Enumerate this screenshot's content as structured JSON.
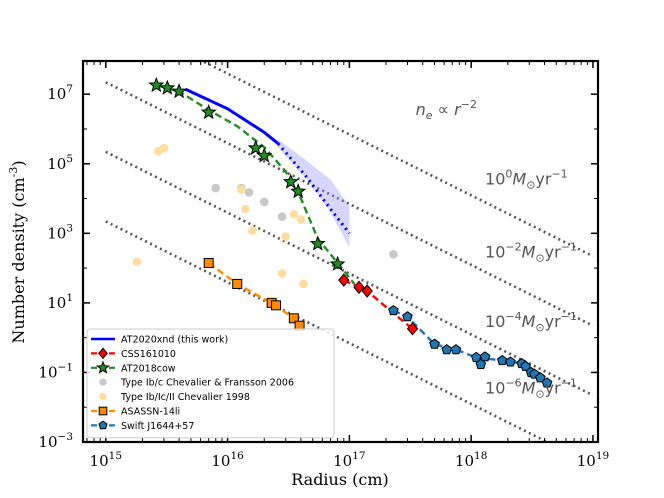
{
  "chart_data": {
    "type": "scatter",
    "title": "",
    "xlabel": "Radius (cm)",
    "ylabel": "Number density (cm",
    "ylabel_sup": "-3",
    "ylabel_tail": ")",
    "xscale": "log",
    "yscale": "log",
    "xlim": [
      650000000000000.0,
      1.1e+19
    ],
    "ylim": [
      0.001,
      90000000.0
    ],
    "x_major_ticks": [
      1000000000000000.0,
      1e+16,
      1e+17,
      1e+18,
      1e+19
    ],
    "y_major_ticks": [
      0.001,
      0.1,
      10,
      1000,
      100000,
      10000000
    ],
    "x_tick_labels": [
      {
        "base": "10",
        "exp": "15"
      },
      {
        "base": "10",
        "exp": "16"
      },
      {
        "base": "10",
        "exp": "17"
      },
      {
        "base": "10",
        "exp": "18"
      },
      {
        "base": "10",
        "exp": "19"
      }
    ],
    "y_tick_labels": [
      {
        "base": "10",
        "exp": "−3"
      },
      {
        "base": "10",
        "exp": "−1"
      },
      {
        "base": "10",
        "exp": "1"
      },
      {
        "base": "10",
        "exp": "3"
      },
      {
        "base": "10",
        "exp": "5"
      },
      {
        "base": "10",
        "exp": "7"
      }
    ],
    "reference_lines": [
      {
        "name": "1e-6 Msun/yr",
        "x": [
          1000000000000000.0,
          1e+19
        ],
        "y": [
          2200,
          0.00022
        ]
      },
      {
        "name": "1e-4 Msun/yr",
        "x": [
          1000000000000000.0,
          1e+19
        ],
        "y": [
          220000,
          0.022
        ]
      },
      {
        "name": "1e-2 Msun/yr",
        "x": [
          1000000000000000.0,
          1e+19
        ],
        "y": [
          22000000,
          2.2
        ]
      },
      {
        "name": "1e0 Msun/yr",
        "x": [
          1000000000000000.0,
          1e+19
        ],
        "y": [
          2200000000,
          220
        ]
      }
    ],
    "annotations": [
      {
        "text": "n",
        "sub": "e",
        "rest": " ∝ r",
        "sup": "−2",
        "x": 3.5e+17,
        "y": 2500000.0
      },
      {
        "text": "10",
        "sup": "0",
        "rest": "M",
        "sub": "⊙",
        "tail": "yr",
        "sup2": "−1",
        "x": 1.3e+18,
        "y": 25000.0
      },
      {
        "text": "10",
        "sup": "−2",
        "rest": "M",
        "sub": "⊙",
        "tail": "yr",
        "sup2": "−1",
        "x": 1.3e+18,
        "y": 200
      },
      {
        "text": "10",
        "sup": "−4",
        "rest": "M",
        "sub": "⊙",
        "tail": "yr",
        "sup2": "−1",
        "x": 1.3e+18,
        "y": 2.0
      },
      {
        "text": "10",
        "sup": "−6",
        "rest": "M",
        "sub": "⊙",
        "tail": "yr",
        "sup2": "−1",
        "x": 1.3e+18,
        "y": 0.025
      }
    ],
    "series": [
      {
        "name": "Type Ib/c Chevalier & Fransson 2006",
        "color": "#c8c8c8",
        "marker": "circle",
        "x": [
          8000000000000000.0,
          1.3e+16,
          2e+16,
          1.5e+16,
          2.8e+16,
          2.3e+17
        ],
        "y": [
          20000.0,
          20000.0,
          8000,
          15000.0,
          3000,
          250
        ]
      },
      {
        "name": "Type Ib/Ic/II Chevalier 1998",
        "color": "#fedd9e",
        "marker": "circle",
        "x": [
          1800000000000000.0,
          2700000000000000.0,
          3000000000000000.0,
          1.3e+16,
          1.4e+16,
          1.6e+16,
          3.5e+16,
          3e+16,
          4e+16,
          2.8e+16,
          4.2e+16
        ],
        "y": [
          150,
          230000.0,
          280000.0,
          18000.0,
          5000.0,
          1200.0,
          3500.0,
          800,
          2500.0,
          70,
          35
        ]
      },
      {
        "name": "AT2020xnd (this work)",
        "color": "#0000ff",
        "marker": "line",
        "x": [
          4500000000000000.0,
          1e+16,
          2e+16,
          2.6e+16
        ],
        "y": [
          14000000.0,
          3800000.0,
          800000.0,
          380000.0
        ],
        "extension_x": [
          2.6e+16,
          4.5e+16,
          7e+16,
          1e+17
        ],
        "extension_y": [
          380000.0,
          40000.0,
          5000.0,
          1000
        ],
        "band_x": [
          2.6e+16,
          4.5e+16,
          7e+16,
          1e+17
        ],
        "band_upper": [
          500000.0,
          120000.0,
          35000.0,
          6000
        ],
        "band_lower": [
          300000.0,
          35000.0,
          4000,
          400
        ]
      },
      {
        "name": "AT2018cow",
        "color": "#228b22",
        "marker": "star",
        "x": [
          2600000000000000.0,
          3200000000000000.0,
          4000000000000000.0,
          7000000000000000.0,
          1.7e+16,
          2e+16,
          3.3e+16,
          3.8e+16,
          5.5e+16,
          8e+16
        ],
        "y": [
          18000000.0,
          15000000.0,
          12000000.0,
          3000000.0,
          280000.0,
          170000.0,
          30000.0,
          16000.0,
          500,
          130
        ]
      },
      {
        "name": "CSS161010",
        "color": "#ff0000",
        "marker": "diamond",
        "x": [
          9e+16,
          1.2e+17,
          1.4e+17,
          3.3e+17
        ],
        "y": [
          45,
          28,
          22,
          1.8
        ]
      },
      {
        "name": "ASASSN-14li",
        "color": "#ff8c00",
        "marker": "square",
        "x": [
          7000000000000000.0,
          1.2e+16,
          2.3e+16,
          2.5e+16,
          3.5e+16,
          3.9e+16
        ],
        "y": [
          140,
          35,
          10,
          8.5,
          3.6,
          2.2
        ]
      },
      {
        "name": "Swift J1644+57",
        "color": "#1f77b4",
        "marker": "pentagon",
        "x": [
          2.3e+17,
          3e+17,
          5e+17,
          6.3e+17,
          7.5e+17,
          1.1e+18,
          1.2e+18,
          1.3e+18,
          1.8e+18,
          2.1e+18,
          2.6e+18,
          2.8e+18,
          3.1e+18,
          3.3e+18,
          3.7e+18,
          4.2e+18
        ],
        "y": [
          6,
          4,
          0.65,
          0.45,
          0.45,
          0.27,
          0.17,
          0.28,
          0.22,
          0.2,
          0.18,
          0.15,
          0.1,
          0.09,
          0.07,
          0.05
        ]
      }
    ],
    "fit_lines": [
      {
        "name": "AT2018cow fit",
        "color": "#228b22",
        "dash": "7,4",
        "x": [
          2600000000000000.0,
          4000000000000000.0,
          7000000000000000.0,
          1.2e+16,
          2e+16,
          3e+16,
          4e+16,
          5.5e+16,
          8e+16,
          1.1e+17
        ],
        "y": [
          18000000.0,
          12000000.0,
          3500000.0,
          1200000.0,
          300000.0,
          60000.0,
          10000.0,
          700,
          140,
          35
        ]
      },
      {
        "name": "CSS161010 fit",
        "color": "#ff0000",
        "dash": "7,4",
        "x": [
          9e+16,
          1.4e+17,
          2.3e+17,
          3.3e+17
        ],
        "y": [
          45,
          22,
          5,
          1.8
        ]
      },
      {
        "name": "ASASSN-14li fit",
        "color": "#ff8c00",
        "dash": "7,4",
        "x": [
          7000000000000000.0,
          1.2e+16,
          2.4e+16,
          3.5e+16,
          3.9e+16
        ],
        "y": [
          140,
          35,
          9,
          3.6,
          2.2
        ]
      },
      {
        "name": "Swift J1644+57 fit",
        "color": "#1f77b4",
        "dash": "7,4",
        "x": [
          2.3e+17,
          3e+17,
          5e+17,
          7.5e+17,
          1.1e+18,
          1.8e+18,
          2.6e+18,
          3.3e+18,
          4.2e+18
        ],
        "y": [
          6,
          4,
          0.65,
          0.45,
          0.27,
          0.22,
          0.18,
          0.09,
          0.05
        ]
      }
    ],
    "legend": {
      "placement": "bottom-left",
      "entries": [
        {
          "label": "AT2020xnd (this work)",
          "color": "#0000ff",
          "marker": "line"
        },
        {
          "label": "CSS161010",
          "color": "#ff0000",
          "marker": "diamond"
        },
        {
          "label": "AT2018cow",
          "color": "#228b22",
          "marker": "star"
        },
        {
          "label": "Type Ib/c Chevalier & Fransson 2006",
          "color": "#c8c8c8",
          "marker": "circle"
        },
        {
          "label": "Type Ib/Ic/II Chevalier 1998",
          "color": "#fedd9e",
          "marker": "circle"
        },
        {
          "label": "ASASSN-14li",
          "color": "#ff8c00",
          "marker": "square"
        },
        {
          "label": "Swift J1644+57",
          "color": "#1f77b4",
          "marker": "pentagon"
        }
      ]
    }
  }
}
